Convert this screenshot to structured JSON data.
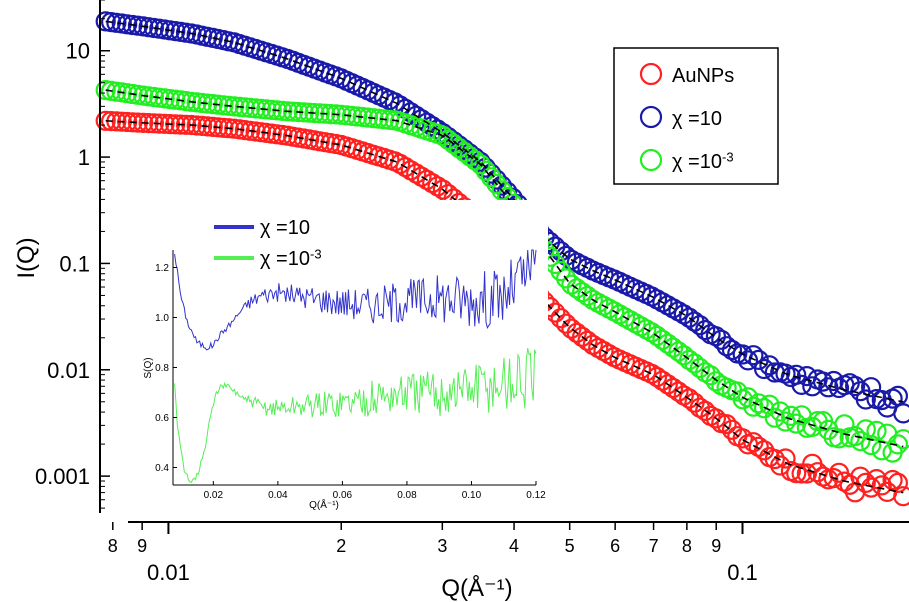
{
  "chart_data": [
    {
      "type": "scatter",
      "scale": "log-log",
      "xlabel": "Q(Å⁻¹)",
      "ylabel": "I(Q)",
      "xlim": [
        0.0076,
        0.195
      ],
      "ylim": [
        0.00045,
        30
      ],
      "x_ticks_major": [
        {
          "value": 0.01,
          "label": "0.01"
        },
        {
          "value": 0.1,
          "label": "0.1"
        }
      ],
      "x_ticks_minor": [
        {
          "value": 0.008,
          "label": "8"
        },
        {
          "value": 0.009,
          "label": "9"
        },
        {
          "value": 0.02,
          "label": "2"
        },
        {
          "value": 0.03,
          "label": "3"
        },
        {
          "value": 0.04,
          "label": "4"
        },
        {
          "value": 0.05,
          "label": "5"
        },
        {
          "value": 0.06,
          "label": "6"
        },
        {
          "value": 0.07,
          "label": "7"
        },
        {
          "value": 0.08,
          "label": "8"
        },
        {
          "value": 0.09,
          "label": "9"
        }
      ],
      "y_ticks": [
        {
          "value": 10,
          "label": "10"
        },
        {
          "value": 1,
          "label": "1"
        },
        {
          "value": 0.1,
          "label": "0.1"
        },
        {
          "value": 0.01,
          "label": "0.01"
        },
        {
          "value": 0.001,
          "label": "0.001"
        }
      ],
      "marker": "open-circle",
      "fit_line": "black dashed",
      "legend": {
        "placement": "top-right",
        "entries": [
          {
            "name": "AuNPs",
            "base": "AuNPs",
            "sup": "",
            "color": "#ff2020"
          },
          {
            "name": "χ =10",
            "base": "χ =10",
            "sup": "",
            "color": "#1a1aaa"
          },
          {
            "name": "χ =10-3",
            "base": "χ =10",
            "sup": "-3",
            "color": "#22ee22"
          }
        ]
      },
      "series": [
        {
          "name": "AuNPs",
          "color": "#ff2020",
          "x": [
            0.0077,
            0.009,
            0.011,
            0.013,
            0.016,
            0.02,
            0.025,
            0.03,
            0.035,
            0.04,
            0.045,
            0.05,
            0.055,
            0.06,
            0.07,
            0.08,
            0.09,
            0.1,
            0.12,
            0.15,
            0.19
          ],
          "y": [
            2.2,
            2.1,
            2.0,
            1.85,
            1.6,
            1.3,
            0.9,
            0.5,
            0.25,
            0.1,
            0.045,
            0.025,
            0.017,
            0.013,
            0.009,
            0.0055,
            0.0035,
            0.0022,
            0.0013,
            0.0009,
            0.0007
          ]
        },
        {
          "name": "χ =10",
          "color": "#1a1aaa",
          "x": [
            0.0077,
            0.009,
            0.011,
            0.013,
            0.016,
            0.02,
            0.025,
            0.03,
            0.035,
            0.04,
            0.045,
            0.05,
            0.055,
            0.06,
            0.07,
            0.08,
            0.09,
            0.1,
            0.12,
            0.15,
            0.19
          ],
          "y": [
            19,
            17,
            14.5,
            12,
            8.5,
            5.5,
            3.2,
            1.7,
            0.9,
            0.4,
            0.18,
            0.11,
            0.085,
            0.07,
            0.048,
            0.032,
            0.02,
            0.014,
            0.009,
            0.0065,
            0.005
          ]
        },
        {
          "name": "χ =10-3",
          "color": "#22ee22",
          "x": [
            0.0077,
            0.009,
            0.011,
            0.013,
            0.016,
            0.02,
            0.025,
            0.03,
            0.035,
            0.04,
            0.045,
            0.05,
            0.055,
            0.06,
            0.07,
            0.08,
            0.09,
            0.1,
            0.12,
            0.15,
            0.19
          ],
          "y": [
            4.3,
            3.8,
            3.3,
            3.0,
            2.7,
            2.5,
            2.2,
            1.6,
            0.85,
            0.35,
            0.14,
            0.065,
            0.045,
            0.035,
            0.022,
            0.013,
            0.008,
            0.0055,
            0.0035,
            0.0025,
            0.0019
          ]
        }
      ]
    },
    {
      "type": "line",
      "role": "inset",
      "xlabel": "Q(Å⁻¹)",
      "ylabel": "S(Q)",
      "xlim": [
        0.0075,
        0.12
      ],
      "ylim": [
        0.33,
        1.27
      ],
      "x_ticks": [
        0.02,
        0.04,
        0.06,
        0.08,
        0.1,
        0.12
      ],
      "x_tick_labels": [
        "0.02",
        "0.04",
        "0.06",
        "0.08",
        "0.10",
        "0.12"
      ],
      "y_ticks": [
        0.4,
        0.6,
        0.8,
        1.0,
        1.2
      ],
      "y_tick_labels": [
        "0.4",
        "0.6",
        "0.8",
        "1.0",
        "1.2"
      ],
      "legend": {
        "placement": "top-left",
        "entries": [
          {
            "name": "χ =10",
            "base": "χ =10",
            "sup": "",
            "color": "#3333cc"
          },
          {
            "name": "χ =10-3",
            "base": "χ =10",
            "sup": "-3",
            "color": "#55ee55"
          }
        ]
      },
      "series": [
        {
          "name": "χ =10",
          "color": "#3333cc",
          "x": [
            0.008,
            0.01,
            0.012,
            0.015,
            0.018,
            0.02,
            0.022,
            0.025,
            0.03,
            0.035,
            0.04,
            0.05,
            0.06,
            0.07,
            0.08,
            0.09,
            0.1,
            0.11,
            0.12
          ],
          "y": [
            1.26,
            1.08,
            0.98,
            0.9,
            0.88,
            0.89,
            0.93,
            0.97,
            1.05,
            1.09,
            1.1,
            1.08,
            1.06,
            1.05,
            1.07,
            1.08,
            1.07,
            1.08,
            1.22
          ],
          "noise": 0.05
        },
        {
          "name": "χ =10-3",
          "color": "#55ee55",
          "x": [
            0.008,
            0.009,
            0.011,
            0.013,
            0.015,
            0.017,
            0.019,
            0.021,
            0.023,
            0.025,
            0.03,
            0.035,
            0.04,
            0.05,
            0.06,
            0.07,
            0.08,
            0.09,
            0.1,
            0.11,
            0.12
          ],
          "y": [
            0.74,
            0.55,
            0.38,
            0.35,
            0.37,
            0.45,
            0.6,
            0.7,
            0.73,
            0.72,
            0.67,
            0.64,
            0.64,
            0.65,
            0.66,
            0.68,
            0.7,
            0.7,
            0.72,
            0.74,
            0.76
          ],
          "noise": 0.05
        }
      ]
    }
  ]
}
